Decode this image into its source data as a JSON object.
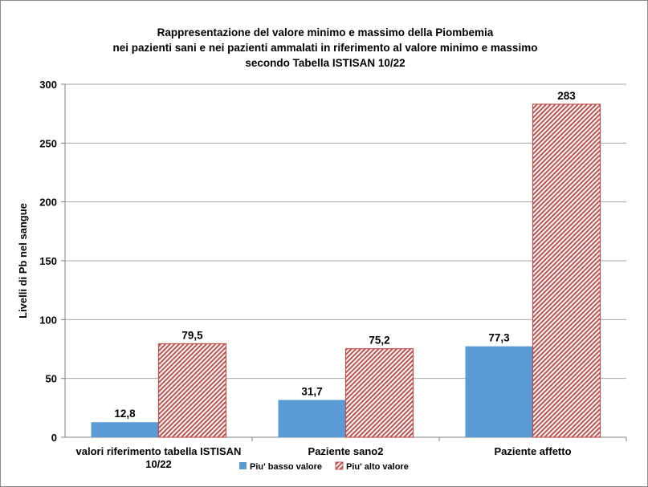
{
  "chart_data": {
    "type": "bar",
    "title_lines": [
      "Rappresentazione  del valore minimo  e massimo della Piombemia",
      "nei pazienti  sani  e nei pazienti  ammalati  in riferimento al valore minimo e massimo",
      "secondo  Tabella ISTISAN 10/22"
    ],
    "xlabel": "",
    "ylabel": "Livelli di Pb nel sangue",
    "ylim": [
      0,
      300
    ],
    "yticks": [
      0,
      50,
      100,
      150,
      200,
      250,
      300
    ],
    "categories": [
      [
        "valori riferimento tabella ISTISAN",
        "10/22"
      ],
      [
        "Paziente sano2"
      ],
      [
        "Paziente affetto"
      ]
    ],
    "series": [
      {
        "name": "Piu' basso valore",
        "values": [
          12.8,
          31.7,
          77.3
        ],
        "labels": [
          "12,8",
          "31,7",
          "77,3"
        ],
        "color": "#5b9bd5"
      },
      {
        "name": "Piu' alto valore",
        "values": [
          79.5,
          75.2,
          283
        ],
        "labels": [
          "79,5",
          "75,2",
          "283"
        ],
        "color": "#c0504d",
        "pattern": "diagonal-hatch"
      }
    ],
    "grid": true,
    "legend_position": "bottom"
  }
}
